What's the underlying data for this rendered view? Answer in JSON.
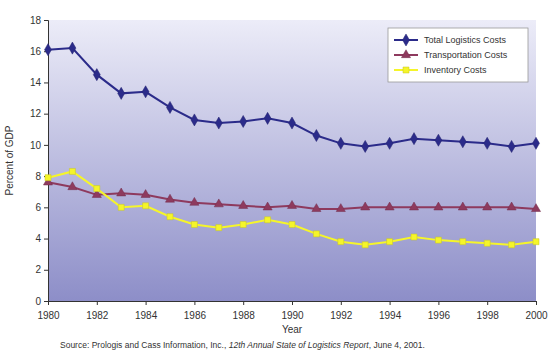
{
  "chart_data": {
    "type": "line",
    "x_label": "Year",
    "y_label": "Percent of GDP",
    "source": [
      "Source: Prologis and Cass Information, Inc., ",
      "12th Annual State of Logistics Report",
      ", June 4, 2001."
    ],
    "x": [
      1980,
      1981,
      1982,
      1983,
      1984,
      1985,
      1986,
      1987,
      1988,
      1989,
      1990,
      1991,
      1992,
      1993,
      1994,
      1995,
      1996,
      1997,
      1998,
      1999,
      2000
    ],
    "xlim": [
      1980,
      2000
    ],
    "xticks": [
      1980,
      1982,
      1984,
      1986,
      1988,
      1990,
      1992,
      1994,
      1996,
      1998,
      2000
    ],
    "ylim": [
      0,
      18
    ],
    "yticks": [
      0,
      2,
      4,
      6,
      8,
      10,
      12,
      14,
      16,
      18
    ],
    "grid": false,
    "legend": "top-right",
    "series": [
      {
        "name": "Total Logistics Costs",
        "color": "#2b2b8a",
        "marker": "diamond",
        "values": [
          16.1,
          16.2,
          14.5,
          13.3,
          13.4,
          12.4,
          11.6,
          11.4,
          11.5,
          11.7,
          11.4,
          10.6,
          10.1,
          9.9,
          10.1,
          10.4,
          10.3,
          10.2,
          10.1,
          9.9,
          10.1
        ]
      },
      {
        "name": "Transportation Costs",
        "color": "#8e3a5e",
        "marker": "triangle",
        "values": [
          7.6,
          7.3,
          6.8,
          6.9,
          6.8,
          6.5,
          6.3,
          6.2,
          6.1,
          6.0,
          6.1,
          5.9,
          5.9,
          6.0,
          6.0,
          6.0,
          6.0,
          6.0,
          6.0,
          6.0,
          5.9
        ]
      },
      {
        "name": "Inventory Costs",
        "color": "#f5f52a",
        "marker": "square",
        "values": [
          7.9,
          8.3,
          7.2,
          6.0,
          6.1,
          5.4,
          4.9,
          4.7,
          4.9,
          5.2,
          4.9,
          4.3,
          3.8,
          3.6,
          3.8,
          4.1,
          3.9,
          3.8,
          3.7,
          3.6,
          3.8
        ]
      }
    ]
  }
}
